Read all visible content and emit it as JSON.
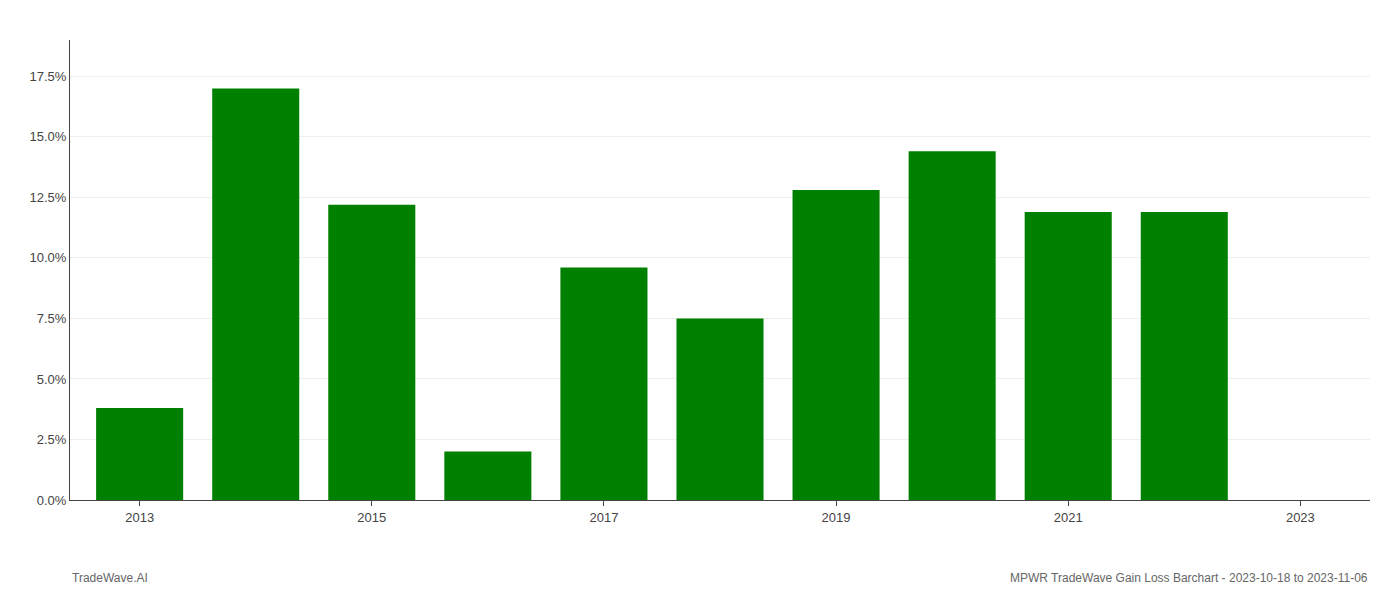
{
  "chart_data": {
    "type": "bar",
    "x": [
      2013,
      2014,
      2015,
      2016,
      2017,
      2018,
      2019,
      2020,
      2021,
      2022
    ],
    "values": [
      0.038,
      0.17,
      0.122,
      0.02,
      0.096,
      0.075,
      0.128,
      0.144,
      0.119,
      0.119
    ],
    "color": "#008000",
    "xlim": [
      2012.4,
      2023.6
    ],
    "xticks": [
      2013,
      2015,
      2017,
      2019,
      2021,
      2023
    ],
    "ylim": [
      0,
      0.19
    ],
    "yticks": [
      {
        "value": 0.0,
        "label": "0.0%"
      },
      {
        "value": 0.025,
        "label": "2.5%"
      },
      {
        "value": 0.05,
        "label": "5.0%"
      },
      {
        "value": 0.075,
        "label": "7.5%"
      },
      {
        "value": 0.1,
        "label": "10.0%"
      },
      {
        "value": 0.125,
        "label": "12.5%"
      },
      {
        "value": 0.15,
        "label": "15.0%"
      },
      {
        "value": 0.175,
        "label": "17.5%"
      }
    ],
    "grid": true,
    "annotations": [
      "TradeWave.AI",
      "MPWR TradeWave Gain Loss Barchart - 2023-10-18 to 2023-11-06"
    ]
  }
}
